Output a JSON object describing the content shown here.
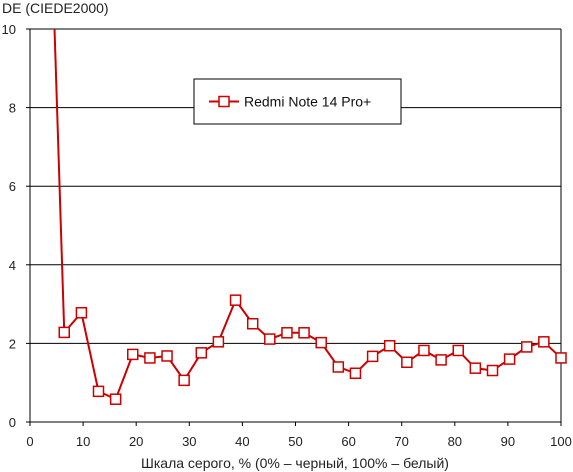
{
  "chart_data": {
    "type": "line",
    "title": "",
    "ylabel": "DE (CIEDE2000)",
    "xlabel": "Шкала серого, % (0% – черный, 100% – белый)",
    "xlim": [
      0,
      100
    ],
    "ylim": [
      0,
      10
    ],
    "xticks": [
      0,
      10,
      20,
      30,
      40,
      50,
      60,
      70,
      80,
      90,
      100
    ],
    "yticks": [
      0,
      2,
      4,
      6,
      8,
      10
    ],
    "grid": "horizontal",
    "legend_position": "top-center",
    "series_color": "#cc0000",
    "series": [
      {
        "name": "Redmi Note 14 Pro+",
        "marker": "square",
        "x": [
          6.45,
          9.68,
          12.9,
          16.13,
          19.35,
          22.58,
          25.81,
          29.03,
          32.26,
          35.48,
          38.71,
          41.94,
          45.16,
          48.39,
          51.61,
          54.84,
          58.06,
          61.29,
          64.52,
          67.74,
          70.97,
          74.19,
          77.42,
          80.65,
          83.87,
          87.1,
          90.32,
          93.55,
          96.77,
          100
        ],
        "values": [
          2.28,
          2.78,
          0.78,
          0.58,
          1.72,
          1.63,
          1.68,
          1.06,
          1.76,
          2.04,
          3.1,
          2.5,
          2.11,
          2.27,
          2.27,
          2.02,
          1.4,
          1.24,
          1.67,
          1.94,
          1.52,
          1.82,
          1.58,
          1.82,
          1.37,
          1.31,
          1.6,
          1.91,
          2.04,
          1.63
        ],
        "offscale_start": {
          "x": 4.5,
          "y": 10.5
        }
      }
    ]
  }
}
